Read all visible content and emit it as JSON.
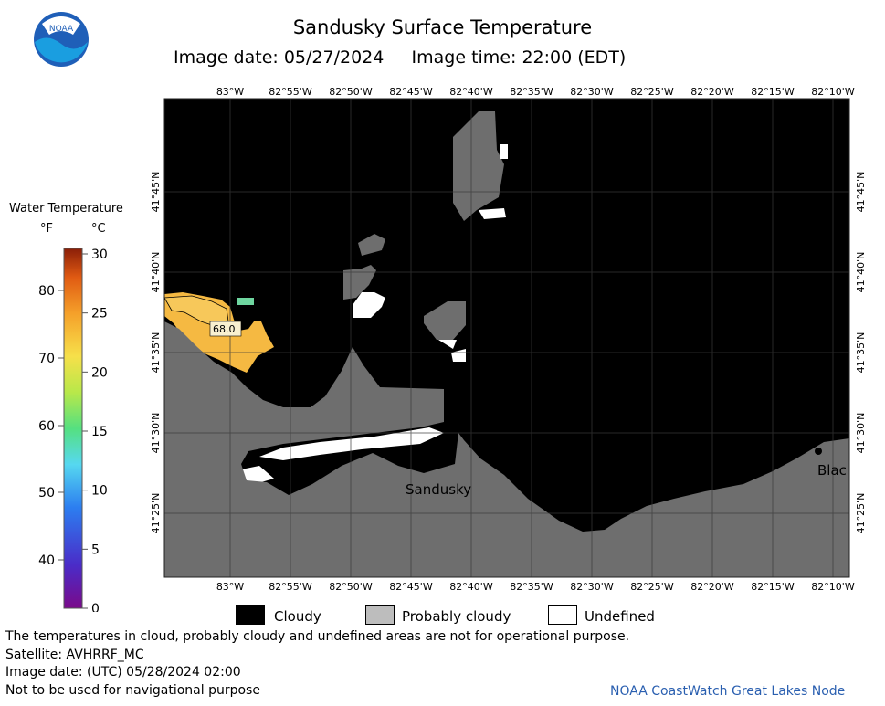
{
  "header": {
    "title": "Sandusky Surface Temperature",
    "subtitle": "Image date: 05/27/2024     Image time: 22:00 (EDT)",
    "logo_text": "NOAA"
  },
  "legend": {
    "title": "Water Temperature",
    "unit_f": "°F",
    "unit_c": "°C",
    "f_ticks": [
      "80",
      "70",
      "60",
      "50",
      "40"
    ],
    "c_ticks": [
      "30",
      "25",
      "20",
      "15",
      "10",
      "5",
      "0"
    ],
    "keys": [
      {
        "label": "Cloudy",
        "color": "#000000"
      },
      {
        "label": "Probably cloudy",
        "color": "#bdbdbd"
      },
      {
        "label": "Undefined",
        "color": "#ffffff"
      }
    ]
  },
  "map": {
    "lon_labels": [
      "83°W",
      "82°55'W",
      "82°50'W",
      "82°45'W",
      "82°40'W",
      "82°35'W",
      "82°30'W",
      "82°25'W",
      "82°20'W",
      "82°15'W",
      "82°10'W"
    ],
    "lat_labels": [
      "41°45'N",
      "41°40'N",
      "41°35'N",
      "41°30'N",
      "41°25'N"
    ],
    "place_labels": [
      "Sandusky",
      "Blac"
    ],
    "temp_label": "68.0",
    "colors": {
      "cloud": "#000000",
      "probably_cloudy": "#6e6e6e",
      "land": "#6e6e6e",
      "warm_water": "#f5b942"
    }
  },
  "footer": {
    "lines": [
      "The temperatures in cloud, probably cloudy and undefined areas are not for operational purpose.",
      "Satellite: AVHRRF_MC",
      "Image date: (UTC) 05/28/2024  02:00",
      "Not to be used for navigational purpose"
    ],
    "credit": "NOAA CoastWatch Great Lakes Node"
  }
}
